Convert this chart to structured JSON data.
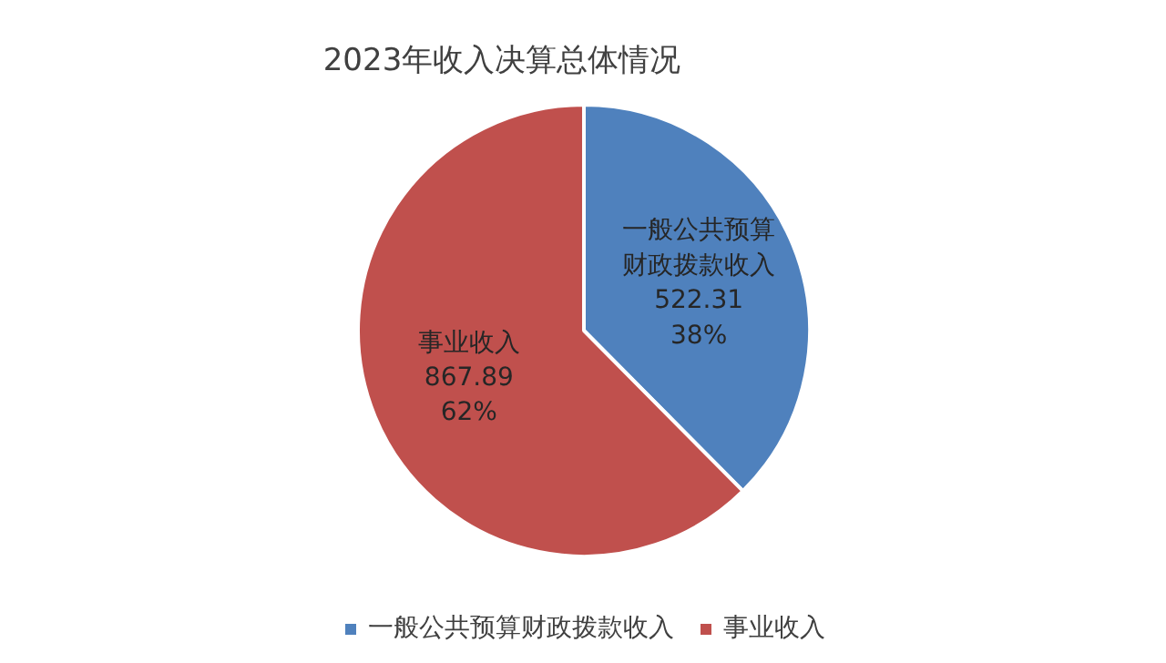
{
  "chart_data": {
    "type": "pie",
    "title": "2023年收入决算总体情况",
    "categories": [
      "一般公共预算财政拨款收入",
      "事业收入"
    ],
    "values": [
      522.31,
      867.89
    ],
    "colors": [
      "#4f81bd",
      "#c0504d"
    ],
    "value_labels": [
      "一般公共预算财政拨款收入\n522.31\n38%",
      "867.89\n62%"
    ],
    "legend": "bottom"
  }
}
